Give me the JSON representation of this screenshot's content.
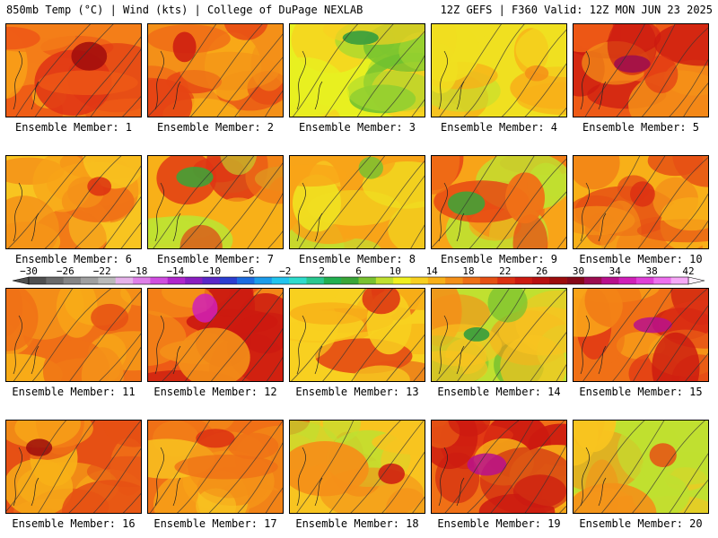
{
  "header": {
    "left": "850mb Temp (°C) | Wind (kts) | College of DuPage NEXLAB",
    "right": "12Z GEFS | F360 Valid: 12Z MON JUN 23 2025"
  },
  "colorbar": {
    "labels": [
      "−30",
      "−26",
      "−22",
      "−18",
      "−14",
      "−10",
      "−6",
      "−2",
      "2",
      "6",
      "10",
      "14",
      "18",
      "22",
      "26",
      "30",
      "34",
      "38",
      "42"
    ],
    "colors": [
      "#4f4f4f",
      "#6a6a6a",
      "#858585",
      "#a0a0a0",
      "#bababa",
      "#e6b3ea",
      "#df80e8",
      "#d04ee0",
      "#b026cc",
      "#8a1ec0",
      "#5a28c8",
      "#2c3ed0",
      "#1c6ce0",
      "#1c9cea",
      "#22c4ee",
      "#2edccc",
      "#2ac890",
      "#22b050",
      "#3aa638",
      "#7ac230",
      "#c0e030",
      "#f0f020",
      "#f8d020",
      "#f8b018",
      "#f49018",
      "#ee7016",
      "#e65014",
      "#dc3012",
      "#cc1a10",
      "#b81010",
      "#9c0c0c",
      "#860818",
      "#9c0c50",
      "#b8108c",
      "#d020b8",
      "#e040d8",
      "#ee70ee",
      "#f6a8f6"
    ]
  },
  "members": [
    {
      "label": "Ensemble Member: 1",
      "palette": [
        "#e03414",
        "#ee5a16",
        "#f47e18",
        "#f8a418"
      ],
      "hot": "#a00c0c"
    },
    {
      "label": "Ensemble Member: 2",
      "palette": [
        "#e64414",
        "#f06a16",
        "#f49018",
        "#f8b018"
      ],
      "hot": "#cc1a10"
    },
    {
      "label": "Ensemble Member: 3",
      "palette": [
        "#70c030",
        "#a8d830",
        "#e8f020",
        "#f8d020"
      ],
      "hot": "#2a9a40"
    },
    {
      "label": "Ensemble Member: 4",
      "palette": [
        "#f8c420",
        "#f8b018",
        "#f0e020",
        "#c0e030"
      ],
      "hot": "#f49018"
    },
    {
      "label": "Ensemble Member: 5",
      "palette": [
        "#cc1a10",
        "#e03414",
        "#ee5a16",
        "#f49018"
      ],
      "hot": "#9c0c50"
    },
    {
      "label": "Ensemble Member: 6",
      "palette": [
        "#f49018",
        "#f8a418",
        "#f8c420",
        "#f07016"
      ],
      "hot": "#dc3012"
    },
    {
      "label": "Ensemble Member: 7",
      "palette": [
        "#e03414",
        "#f07016",
        "#f8b018",
        "#c0e030"
      ],
      "hot": "#3aa638"
    },
    {
      "label": "Ensemble Member: 8",
      "palette": [
        "#f8c420",
        "#f0e020",
        "#f8a418",
        "#c0e030"
      ],
      "hot": "#7ac230"
    },
    {
      "label": "Ensemble Member: 9",
      "palette": [
        "#e64414",
        "#f07016",
        "#f8a418",
        "#c0e030"
      ],
      "hot": "#3aa638"
    },
    {
      "label": "Ensemble Member: 10",
      "palette": [
        "#f49018",
        "#f07016",
        "#f8b018",
        "#e65014"
      ],
      "hot": "#dc3012"
    },
    {
      "label": "Ensemble Member: 11",
      "palette": [
        "#f49018",
        "#f8a418",
        "#f07016",
        "#f8b018"
      ],
      "hot": "#e65014"
    },
    {
      "label": "Ensemble Member: 12",
      "palette": [
        "#cc1a10",
        "#e03414",
        "#ee5a16",
        "#f49018"
      ],
      "hot": "#d020b8"
    },
    {
      "label": "Ensemble Member: 13",
      "palette": [
        "#f8b018",
        "#f49018",
        "#f8d020",
        "#e65014"
      ],
      "hot": "#dc3012"
    },
    {
      "label": "Ensemble Member: 14",
      "palette": [
        "#f49018",
        "#f8c420",
        "#c0e030",
        "#7ac230"
      ],
      "hot": "#2a9a40"
    },
    {
      "label": "Ensemble Member: 15",
      "palette": [
        "#cc1a10",
        "#e03414",
        "#f07016",
        "#f8a418"
      ],
      "hot": "#b8108c"
    },
    {
      "label": "Ensemble Member: 16",
      "palette": [
        "#f49018",
        "#f07016",
        "#e65014",
        "#f8b018"
      ],
      "hot": "#9c0c0c"
    },
    {
      "label": "Ensemble Member: 17",
      "palette": [
        "#f49018",
        "#f8a418",
        "#f07016",
        "#f8c420"
      ],
      "hot": "#dc3012"
    },
    {
      "label": "Ensemble Member: 18",
      "palette": [
        "#e65014",
        "#f49018",
        "#f8c420",
        "#c0e030"
      ],
      "hot": "#cc1a10"
    },
    {
      "label": "Ensemble Member: 19",
      "palette": [
        "#cc1a10",
        "#e03414",
        "#f07016",
        "#f8b018"
      ],
      "hot": "#b8108c"
    },
    {
      "label": "Ensemble Member: 20",
      "palette": [
        "#f8c420",
        "#f0e020",
        "#c0e030",
        "#f49018"
      ],
      "hot": "#e65014"
    }
  ]
}
